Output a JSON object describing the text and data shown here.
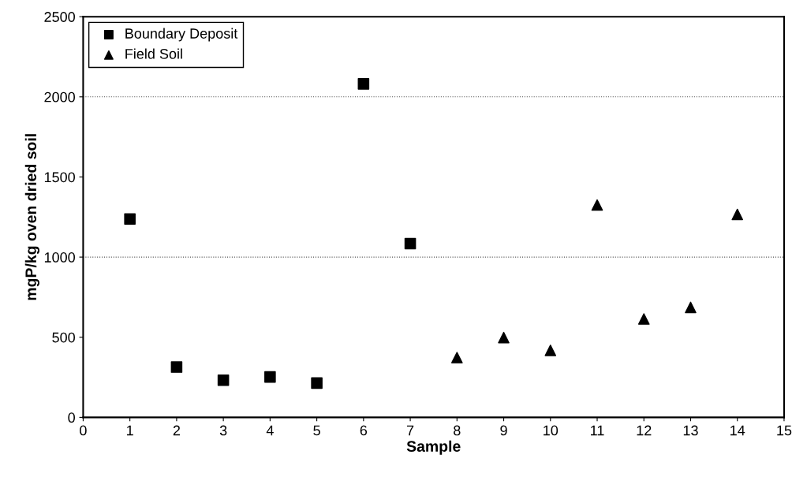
{
  "chart_data": {
    "type": "scatter",
    "xlabel": "Sample",
    "ylabel": "mgP/kg oven dried soil",
    "series": [
      {
        "name": "Boundary Deposit",
        "color": "#000000",
        "marker": "square",
        "x": [
          1,
          2,
          3,
          4,
          5,
          6,
          7
        ],
        "values": [
          1238,
          314,
          232,
          252,
          214,
          2081,
          1084
        ]
      },
      {
        "name": "Field Soil",
        "color": "#000000",
        "marker": "triangle",
        "x": [
          8,
          9,
          10,
          11,
          12,
          13,
          14
        ],
        "values": [
          373,
          498,
          418,
          1325,
          614,
          686,
          1266
        ]
      }
    ],
    "xlim": [
      0,
      15
    ],
    "xticks": [
      0,
      1,
      2,
      3,
      4,
      5,
      6,
      7,
      8,
      9,
      10,
      11,
      12,
      13,
      14,
      15
    ],
    "ylim": [
      0,
      2500
    ],
    "yticks": [
      0,
      500,
      1000,
      1500,
      2000,
      2500
    ],
    "ref_lines": [
      {
        "axis": "y",
        "value": 1000,
        "color": "#555555",
        "line_style": "dotted"
      },
      {
        "axis": "y",
        "value": 2000,
        "color": "#555555",
        "line_style": "dotted"
      }
    ],
    "legend": "top left"
  }
}
